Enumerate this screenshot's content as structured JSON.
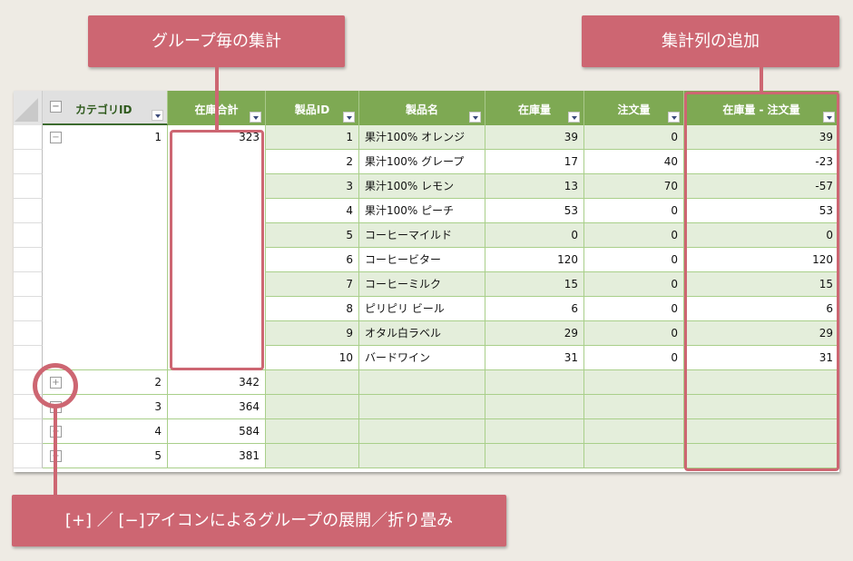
{
  "callouts": {
    "group_summary": "グループ毎の集計",
    "add_column": "集計列の追加",
    "expand_collapse": "[+] ／ [−]アイコンによるグループの展開／折り畳み"
  },
  "columns": [
    {
      "key": "category_id",
      "label": "カテゴリID"
    },
    {
      "key": "stock_total",
      "label": "在庫合計"
    },
    {
      "key": "product_id",
      "label": "製品ID"
    },
    {
      "key": "product_name",
      "label": "製品名"
    },
    {
      "key": "stock",
      "label": "在庫量"
    },
    {
      "key": "orders",
      "label": "注文量"
    },
    {
      "key": "diff",
      "label": "在庫量 - 注文量"
    }
  ],
  "groups": [
    {
      "category_id": "1",
      "stock_total": "323",
      "expanded": true,
      "toggle": "−",
      "rows": [
        {
          "product_id": "1",
          "product_name": "果汁100% オレンジ",
          "stock": "39",
          "orders": "0",
          "diff": "39"
        },
        {
          "product_id": "2",
          "product_name": "果汁100% グレープ",
          "stock": "17",
          "orders": "40",
          "diff": "-23"
        },
        {
          "product_id": "3",
          "product_name": "果汁100% レモン",
          "stock": "13",
          "orders": "70",
          "diff": "-57"
        },
        {
          "product_id": "4",
          "product_name": "果汁100% ピーチ",
          "stock": "53",
          "orders": "0",
          "diff": "53"
        },
        {
          "product_id": "5",
          "product_name": "コーヒーマイルド",
          "stock": "0",
          "orders": "0",
          "diff": "0"
        },
        {
          "product_id": "6",
          "product_name": "コーヒービター",
          "stock": "120",
          "orders": "0",
          "diff": "120"
        },
        {
          "product_id": "7",
          "product_name": "コーヒーミルク",
          "stock": "15",
          "orders": "0",
          "diff": "15"
        },
        {
          "product_id": "8",
          "product_name": "ピリピリ ビール",
          "stock": "6",
          "orders": "0",
          "diff": "6"
        },
        {
          "product_id": "9",
          "product_name": "オタル白ラベル",
          "stock": "29",
          "orders": "0",
          "diff": "29"
        },
        {
          "product_id": "10",
          "product_name": "バードワイン",
          "stock": "31",
          "orders": "0",
          "diff": "31"
        }
      ]
    },
    {
      "category_id": "2",
      "stock_total": "342",
      "expanded": false,
      "toggle": "+"
    },
    {
      "category_id": "3",
      "stock_total": "364",
      "expanded": false,
      "toggle": "+"
    },
    {
      "category_id": "4",
      "stock_total": "584",
      "expanded": false,
      "toggle": "+"
    },
    {
      "category_id": "5",
      "stock_total": "381",
      "expanded": false,
      "toggle": "+"
    }
  ],
  "colors": {
    "header_green": "#7ea953",
    "row_green": "#e4eedb",
    "accent": "#cd6672"
  }
}
